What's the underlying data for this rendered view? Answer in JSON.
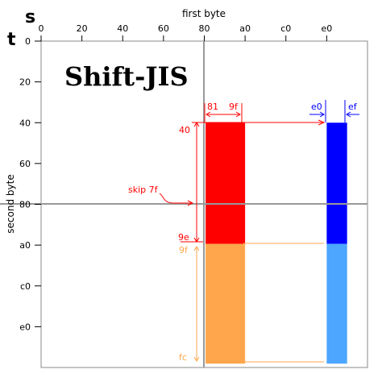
{
  "title": "Shift-JIS",
  "axis_letters": {
    "horizontal": "s",
    "vertical": "t"
  },
  "x_axis": {
    "label": "first byte",
    "ticks": [
      "0",
      "20",
      "40",
      "60",
      "80",
      "a0",
      "c0",
      "e0"
    ]
  },
  "y_axis": {
    "label": "second byte",
    "ticks": [
      "0",
      "20",
      "40",
      "60",
      "80",
      "a0",
      "c0",
      "e0"
    ]
  },
  "annotations": {
    "lead_red_start": "81",
    "lead_red_end": "9f",
    "lead_blue_start": "e0",
    "lead_blue_end": "ef",
    "trail_40": "40",
    "trail_9e": "9e",
    "trail_9f": "9f",
    "trail_fc": "fc",
    "skip": "skip 7f"
  },
  "colors": {
    "red": "#ff0000",
    "blue": "#0000ff",
    "orange": "#ffa64d",
    "light_blue": "#4da6ff",
    "grid": "#999999"
  },
  "regions": [
    {
      "name": "lead-81-9f-trail-40-9e",
      "x0": 129,
      "x1": 160,
      "y0": 64,
      "y1": 159,
      "color": "red"
    },
    {
      "name": "lead-e0-ef-trail-40-9e",
      "x0": 224,
      "x1": 240,
      "y0": 64,
      "y1": 159,
      "color": "blue"
    },
    {
      "name": "lead-81-9f-trail-9f-fc",
      "x0": 129,
      "x1": 160,
      "y0": 159,
      "y1": 253,
      "color": "orange"
    },
    {
      "name": "lead-e0-ef-trail-9f-fc",
      "x0": 224,
      "x1": 240,
      "y0": 159,
      "y1": 253,
      "color": "light_blue"
    }
  ]
}
